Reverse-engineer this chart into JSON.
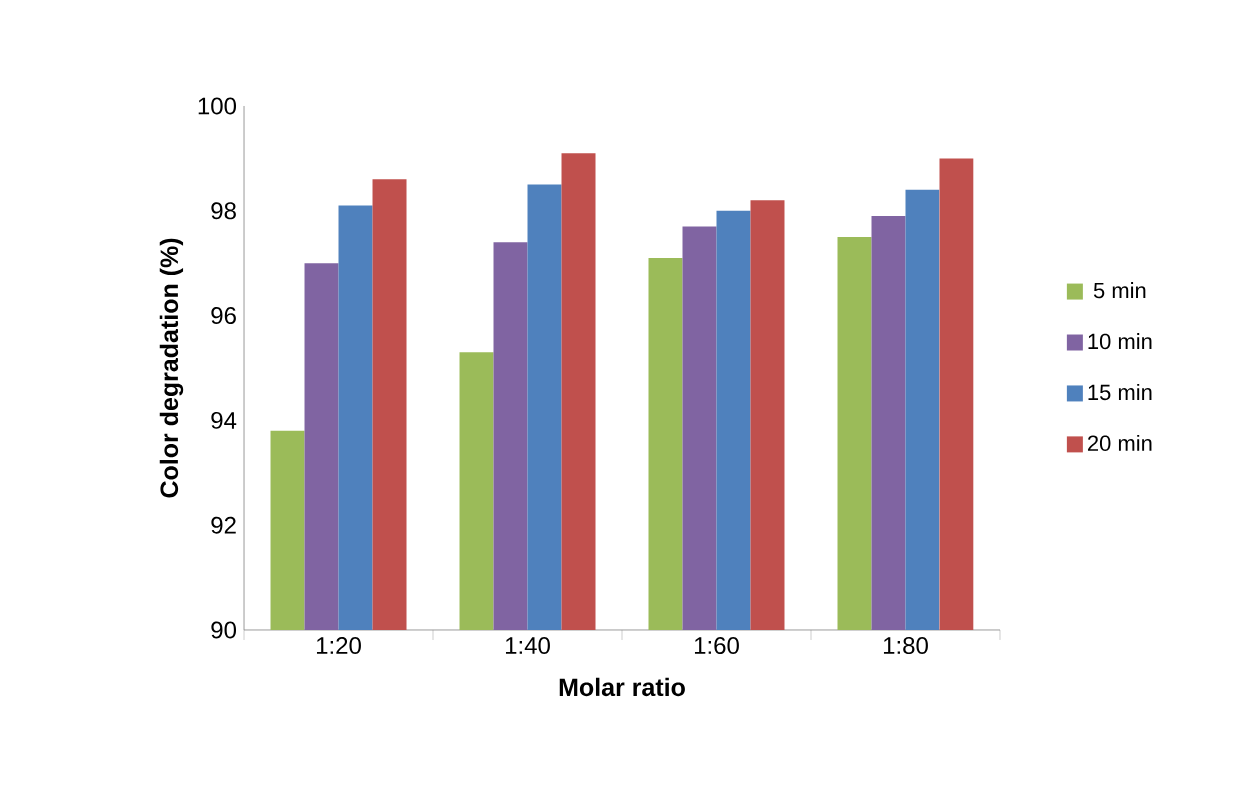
{
  "chart_data": {
    "type": "bar",
    "xlabel": "Molar ratio",
    "ylabel": "Color degradation (%)",
    "categories": [
      "1:20",
      "1:40",
      "1:60",
      "1:80"
    ],
    "series": [
      {
        "name": "5 min",
        "color": "#9bbb59",
        "values": [
          93.8,
          95.3,
          97.1,
          97.5
        ]
      },
      {
        "name": "10 min",
        "color": "#8064a2",
        "values": [
          97.0,
          97.4,
          97.7,
          97.9
        ]
      },
      {
        "name": "15 min",
        "color": "#4f81bd",
        "values": [
          98.1,
          98.5,
          98.0,
          98.4
        ]
      },
      {
        "name": "20 min",
        "color": "#c0504d",
        "values": [
          98.6,
          99.1,
          98.2,
          99.0
        ]
      }
    ],
    "ylim": [
      90,
      100
    ],
    "yticks": [
      90,
      92,
      94,
      96,
      98,
      100
    ],
    "grid": false,
    "legend": "right"
  }
}
